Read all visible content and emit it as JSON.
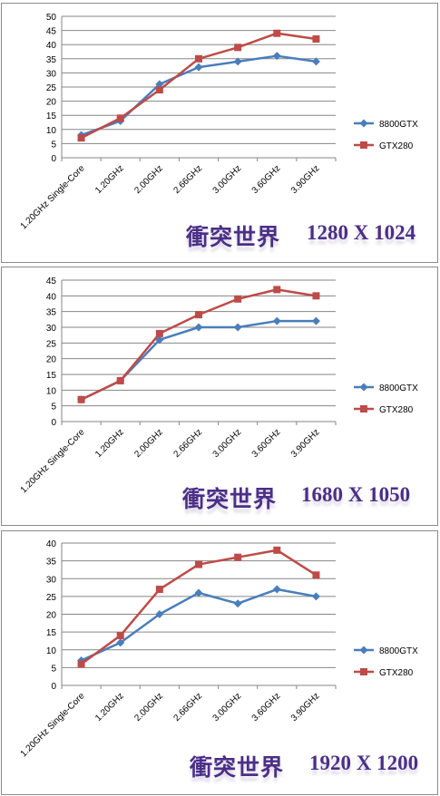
{
  "colors": {
    "series1": "#4a7ebb",
    "series2": "#be4b48",
    "grid": "#868686",
    "caption": "#4b2f86"
  },
  "chart_data": [
    {
      "type": "line",
      "caption": {
        "title_cn": "衝突世界",
        "resolution": "1280 X 1024"
      },
      "categories": [
        "1.20GHz Single-Core",
        "1.20GHz",
        "2.00GHz",
        "2.66GHz",
        "3.00GHz",
        "3.60GHz",
        "3.90GHz"
      ],
      "ylim": [
        0,
        50
      ],
      "yticks": [
        0,
        5,
        10,
        15,
        20,
        25,
        30,
        35,
        40,
        45,
        50
      ],
      "grid": true,
      "legend": "right",
      "series": [
        {
          "name": "8800GTX",
          "values": [
            8,
            13,
            26,
            32,
            34,
            36,
            34
          ]
        },
        {
          "name": "GTX280",
          "values": [
            7,
            14,
            24,
            35,
            39,
            44,
            42
          ]
        }
      ]
    },
    {
      "type": "line",
      "caption": {
        "title_cn": "衝突世界",
        "resolution": "1680 X 1050"
      },
      "categories": [
        "1.20GHz Single-Core",
        "1.20GHz",
        "2.00GHz",
        "2.66GHz",
        "3.00GHz",
        "3.60GHz",
        "3.90GHz"
      ],
      "ylim": [
        0,
        45
      ],
      "yticks": [
        0,
        5,
        10,
        15,
        20,
        25,
        30,
        35,
        40,
        45
      ],
      "grid": true,
      "legend": "right",
      "series": [
        {
          "name": "8800GTX",
          "values": [
            7,
            13,
            26,
            30,
            30,
            32,
            32
          ]
        },
        {
          "name": "GTX280",
          "values": [
            7,
            13,
            28,
            34,
            39,
            42,
            40
          ]
        }
      ]
    },
    {
      "type": "line",
      "caption": {
        "title_cn": "衝突世界",
        "resolution": "1920 X 1200"
      },
      "categories": [
        "1.20GHz Single-Core",
        "1.20GHz",
        "2.00GHz",
        "2.66GHz",
        "3.00GHz",
        "3.60GHz",
        "3.90GHz"
      ],
      "ylim": [
        0,
        40
      ],
      "yticks": [
        0,
        5,
        10,
        15,
        20,
        25,
        30,
        35,
        40
      ],
      "grid": true,
      "legend": "right",
      "series": [
        {
          "name": "8800GTX",
          "values": [
            7,
            12,
            20,
            26,
            23,
            27,
            25
          ]
        },
        {
          "name": "GTX280",
          "values": [
            6,
            14,
            27,
            34,
            36,
            38,
            31
          ]
        }
      ]
    }
  ]
}
